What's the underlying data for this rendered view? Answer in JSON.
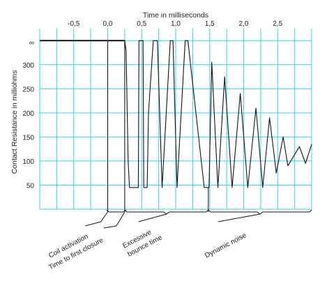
{
  "chart_data": {
    "type": "line",
    "title": "",
    "xlabel": "Time in milliseconds",
    "ylabel": "Contact Resistance in milliohms",
    "x_tick_labels": [
      "-0,5",
      "0,0",
      "0,5",
      "1,0",
      "1,5",
      "2,0",
      "2,5"
    ],
    "x_ticks": [
      -0.5,
      0.0,
      0.5,
      1.0,
      1.5,
      2.0,
      2.5
    ],
    "y_tick_labels": [
      "∞",
      "300",
      "250",
      "200",
      "150",
      "100",
      "50"
    ],
    "y_ticks": [
      350,
      300,
      250,
      200,
      150,
      100,
      50
    ],
    "xlim": [
      -1.0,
      3.0
    ],
    "ylim": [
      0,
      375
    ],
    "grid": true,
    "series": [
      {
        "name": "",
        "points": [
          [
            -1.0,
            350
          ],
          [
            0.25,
            350
          ],
          [
            0.27,
            330
          ],
          [
            0.3,
            100
          ],
          [
            0.32,
            45
          ],
          [
            0.45,
            45
          ],
          [
            0.46,
            350
          ],
          [
            0.52,
            350
          ],
          [
            0.53,
            45
          ],
          [
            0.58,
            45
          ],
          [
            0.6,
            200
          ],
          [
            0.67,
            350
          ],
          [
            0.73,
            350
          ],
          [
            0.8,
            45
          ],
          [
            0.92,
            350
          ],
          [
            0.96,
            350
          ],
          [
            1.02,
            45
          ],
          [
            1.14,
            350
          ],
          [
            1.18,
            350
          ],
          [
            1.42,
            45
          ],
          [
            1.49,
            45
          ],
          [
            1.53,
            305
          ],
          [
            1.62,
            45
          ],
          [
            1.72,
            275
          ],
          [
            1.83,
            45
          ],
          [
            1.95,
            240
          ],
          [
            2.06,
            45
          ],
          [
            2.18,
            210
          ],
          [
            2.28,
            45
          ],
          [
            2.38,
            190
          ],
          [
            2.48,
            75
          ],
          [
            2.58,
            150
          ],
          [
            2.65,
            90
          ],
          [
            2.82,
            130
          ],
          [
            2.91,
            95
          ],
          [
            3.0,
            135
          ]
        ]
      }
    ],
    "annotations": [
      {
        "text": "Coil activation",
        "x": 0.0
      },
      {
        "text": "Time to first closure",
        "x": 0.25
      },
      {
        "text": "Excessive",
        "x_from": 0.25,
        "x_to": 1.48
      },
      {
        "text": "bounce time",
        "x_from": 0.25,
        "x_to": 1.48
      },
      {
        "text": "Dynamic noise",
        "x_from": 1.48,
        "x_to": 3.0
      }
    ]
  }
}
